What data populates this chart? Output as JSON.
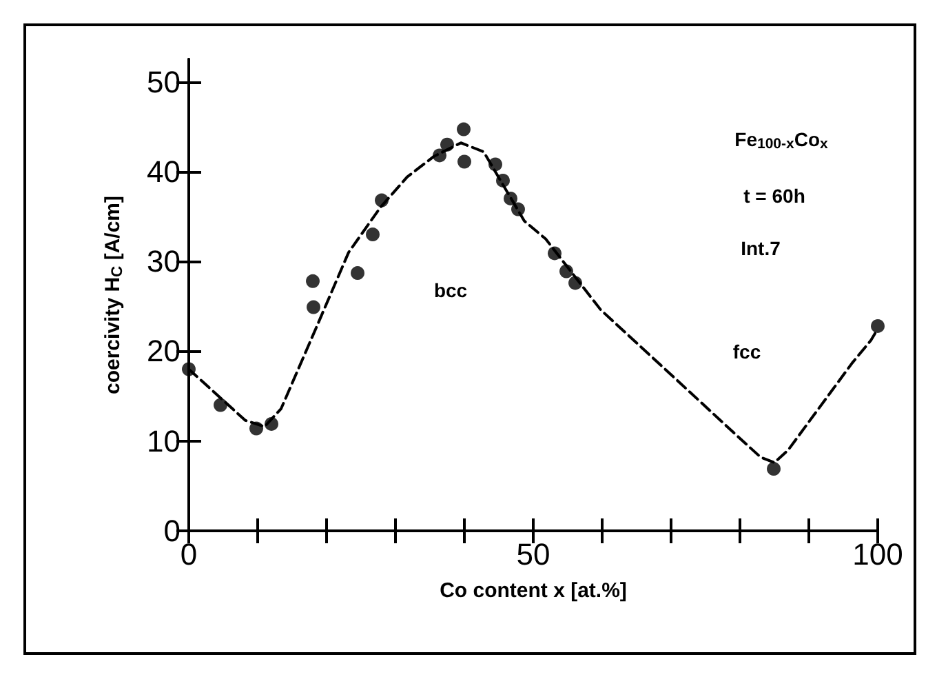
{
  "chart_data": {
    "type": "scatter",
    "xlabel": "Co content x [at.%]",
    "ylabel": "coercivity H$_{C}$ [A/cm]",
    "xlim": [
      0,
      100
    ],
    "ylim": [
      0,
      52.5
    ],
    "xticks": [
      0,
      {
        "value": 10,
        "label": null
      },
      {
        "value": 20,
        "label": null
      },
      {
        "value": 30,
        "label": null
      },
      {
        "value": 40,
        "label": null
      },
      50,
      {
        "value": 60,
        "label": null
      },
      {
        "value": 70,
        "label": null
      },
      {
        "value": 80,
        "label": null
      },
      {
        "value": 90,
        "label": null
      },
      100
    ],
    "yticks": [
      0,
      10,
      20,
      30,
      40,
      50
    ],
    "grid": false,
    "series": [
      {
        "color": "#000000",
        "marker": "circle",
        "x": [
          0,
          4.6,
          9.8,
          12,
          18,
          18.1,
          24.5,
          26.7,
          28,
          36.4,
          37.5,
          39.9,
          40,
          44.5,
          45.6,
          46.7,
          47.8,
          53.1,
          54.8,
          56.1,
          84.9,
          100
        ],
        "values": [
          18,
          14,
          11.4,
          11.9,
          27.8,
          24.9,
          28.7,
          33,
          36.8,
          41.8,
          43,
          44.7,
          41.1,
          40.8,
          39,
          37,
          35.8,
          30.9,
          28.9,
          27.6,
          6.9,
          22.8
        ]
      },
      {
        "type": "line",
        "color": "#000000",
        "marker": "none",
        "line_style": "dashed",
        "x": [
          0,
          8.2,
          11,
          13.4,
          18.6,
          23.2,
          27.8,
          31.7,
          35.6,
          39.5,
          42.8,
          48.7,
          51.8,
          59.8,
          69.7,
          79.7,
          83,
          85,
          87,
          96.3,
          99,
          100
        ],
        "values": [
          18,
          12.3,
          11.6,
          13.6,
          22.8,
          31,
          36,
          39.4,
          41.7,
          43.2,
          42.2,
          34.5,
          32.5,
          24.6,
          17.6,
          10.5,
          8.2,
          7.6,
          9,
          18.7,
          21.2,
          22.5
        ]
      }
    ],
    "annotations": [
      "Fe$_{100-x}$Co$_{x}$",
      "t = 60h",
      "Int.7",
      "bcc",
      "fcc"
    ]
  }
}
